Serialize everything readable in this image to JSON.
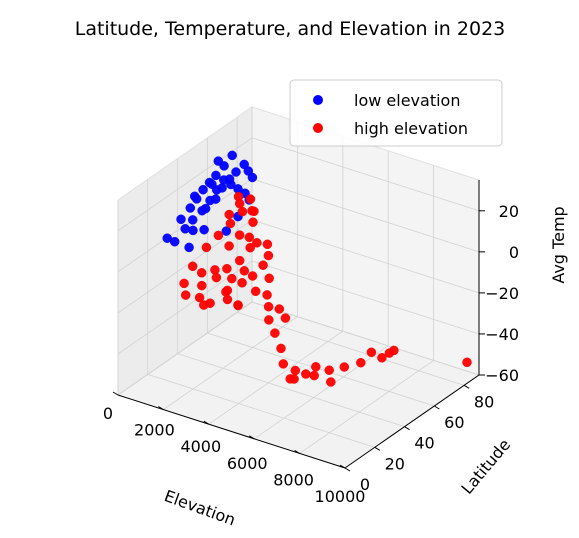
{
  "chart_data": {
    "type": "scatter",
    "projection": "3d",
    "title": "Latitude, Temperature, and Elevation in 2023",
    "xlabel": "Elevation",
    "ylabel": "Latitude",
    "zlabel": "Avg Temp",
    "x_ticks": [
      "0",
      "2000",
      "4000",
      "6000",
      "8000",
      "10000"
    ],
    "y_ticks": [
      "0",
      "20",
      "40",
      "60",
      "80"
    ],
    "z_ticks": [
      "20",
      "0",
      "−20",
      "−40",
      "−60"
    ],
    "xlim": [
      0,
      10000
    ],
    "ylim": [
      0,
      90
    ],
    "zlim": [
      -60,
      35
    ],
    "grid": true,
    "legend_position": "top-right",
    "series": [
      {
        "name": "low elevation",
        "color": "#0000ff",
        "points": [
          {
            "elevation": 150,
            "latitude": 40,
            "temp": 6
          },
          {
            "elevation": 300,
            "latitude": 44,
            "temp": 10
          },
          {
            "elevation": 450,
            "latitude": 46,
            "temp": 14
          },
          {
            "elevation": 600,
            "latitude": 48,
            "temp": 18
          },
          {
            "elevation": 750,
            "latitude": 50,
            "temp": 21
          },
          {
            "elevation": 900,
            "latitude": 52,
            "temp": 24
          },
          {
            "elevation": 250,
            "latitude": 55,
            "temp": 4
          },
          {
            "elevation": 500,
            "latitude": 58,
            "temp": 8
          },
          {
            "elevation": 650,
            "latitude": 60,
            "temp": 13
          },
          {
            "elevation": 850,
            "latitude": 62,
            "temp": 17
          },
          {
            "elevation": 1000,
            "latitude": 64,
            "temp": 20
          },
          {
            "elevation": 1100,
            "latitude": 68,
            "temp": 22
          },
          {
            "elevation": 1150,
            "latitude": 70,
            "temp": 18
          },
          {
            "elevation": 1200,
            "latitude": 72,
            "temp": 14
          },
          {
            "elevation": 200,
            "latitude": 30,
            "temp": 2
          },
          {
            "elevation": 400,
            "latitude": 32,
            "temp": 0
          },
          {
            "elevation": 600,
            "latitude": 36,
            "temp": 5
          },
          {
            "elevation": 800,
            "latitude": 38,
            "temp": 9
          },
          {
            "elevation": 950,
            "latitude": 42,
            "temp": 12
          },
          {
            "elevation": 1100,
            "latitude": 45,
            "temp": 16
          },
          {
            "elevation": 1200,
            "latitude": 48,
            "temp": 20
          },
          {
            "elevation": 1250,
            "latitude": 52,
            "temp": 23
          },
          {
            "elevation": 1300,
            "latitude": 56,
            "temp": 19
          },
          {
            "elevation": 1350,
            "latitude": 60,
            "temp": 15
          },
          {
            "elevation": 1400,
            "latitude": 64,
            "temp": 11
          },
          {
            "elevation": 1450,
            "latitude": 66,
            "temp": 7
          },
          {
            "elevation": 1480,
            "latitude": 58,
            "temp": 3
          },
          {
            "elevation": 1490,
            "latitude": 50,
            "temp": 0
          },
          {
            "elevation": 100,
            "latitude": 50,
            "temp": 12
          },
          {
            "elevation": 350,
            "latitude": 62,
            "temp": 24
          },
          {
            "elevation": 700,
            "latitude": 66,
            "temp": 26
          },
          {
            "elevation": 1000,
            "latitude": 56,
            "temp": 27
          },
          {
            "elevation": 1250,
            "latitude": 44,
            "temp": 25
          },
          {
            "elevation": 550,
            "latitude": 42,
            "temp": 1
          },
          {
            "elevation": 900,
            "latitude": 34,
            "temp": -2
          },
          {
            "elevation": 1300,
            "latitude": 38,
            "temp": 6
          }
        ]
      },
      {
        "name": "high elevation",
        "color": "#ff0000",
        "points": [
          {
            "elevation": 1600,
            "latitude": 35,
            "temp": 0
          },
          {
            "elevation": 1800,
            "latitude": 40,
            "temp": 4
          },
          {
            "elevation": 2000,
            "latitude": 45,
            "temp": 8
          },
          {
            "elevation": 2200,
            "latitude": 50,
            "temp": 12
          },
          {
            "elevation": 2400,
            "latitude": 38,
            "temp": 2
          },
          {
            "elevation": 2600,
            "latitude": 42,
            "temp": 6
          },
          {
            "elevation": 2800,
            "latitude": 48,
            "temp": 10
          },
          {
            "elevation": 3000,
            "latitude": 36,
            "temp": -2
          },
          {
            "elevation": 3200,
            "latitude": 40,
            "temp": 3
          },
          {
            "elevation": 3400,
            "latitude": 33,
            "temp": -4
          },
          {
            "elevation": 1700,
            "latitude": 55,
            "temp": 15
          },
          {
            "elevation": 1900,
            "latitude": 60,
            "temp": 12
          },
          {
            "elevation": 2100,
            "latitude": 58,
            "temp": 8
          },
          {
            "elevation": 2300,
            "latitude": 30,
            "temp": -6
          },
          {
            "elevation": 2500,
            "latitude": 28,
            "temp": -8
          },
          {
            "elevation": 2700,
            "latitude": 32,
            "temp": -5
          },
          {
            "elevation": 2900,
            "latitude": 44,
            "temp": 5
          },
          {
            "elevation": 3100,
            "latitude": 46,
            "temp": 2
          },
          {
            "elevation": 3300,
            "latitude": 50,
            "temp": 0
          },
          {
            "elevation": 3500,
            "latitude": 30,
            "temp": -8
          },
          {
            "elevation": 3700,
            "latitude": 34,
            "temp": -6
          },
          {
            "elevation": 3900,
            "latitude": 38,
            "temp": -2
          },
          {
            "elevation": 4100,
            "latitude": 30,
            "temp": -10
          },
          {
            "elevation": 1650,
            "latitude": 25,
            "temp": -4
          },
          {
            "elevation": 1850,
            "latitude": 28,
            "temp": -8
          },
          {
            "elevation": 2050,
            "latitude": 25,
            "temp": -12
          },
          {
            "elevation": 1750,
            "latitude": 48,
            "temp": 10
          },
          {
            "elevation": 1950,
            "latitude": 52,
            "temp": 14
          },
          {
            "elevation": 2450,
            "latitude": 54,
            "temp": 11
          },
          {
            "elevation": 2650,
            "latitude": 36,
            "temp": -12
          },
          {
            "elevation": 2850,
            "latitude": 30,
            "temp": -14
          },
          {
            "elevation": 3050,
            "latitude": 26,
            "temp": -12
          },
          {
            "elevation": 3250,
            "latitude": 24,
            "temp": -14
          },
          {
            "elevation": 2150,
            "latitude": 22,
            "temp": -16
          },
          {
            "elevation": 2350,
            "latitude": 26,
            "temp": -20
          },
          {
            "elevation": 3450,
            "latitude": 28,
            "temp": -18
          },
          {
            "elevation": 3650,
            "latitude": 25,
            "temp": -16
          },
          {
            "elevation": 1600,
            "latitude": 20,
            "temp": -10
          },
          {
            "elevation": 1800,
            "latitude": 18,
            "temp": -14
          },
          {
            "elevation": 2600,
            "latitude": 18,
            "temp": -16
          },
          {
            "elevation": 4000,
            "latitude": 40,
            "temp": 2
          },
          {
            "elevation": 4300,
            "latitude": 36,
            "temp": -6
          },
          {
            "elevation": 4600,
            "latitude": 30,
            "temp": -10
          },
          {
            "elevation": 4800,
            "latitude": 28,
            "temp": -14
          },
          {
            "elevation": 5200,
            "latitude": 22,
            "temp": -16
          },
          {
            "elevation": 5600,
            "latitude": 20,
            "temp": -20
          },
          {
            "elevation": 6000,
            "latitude": 18,
            "temp": -25
          },
          {
            "elevation": 6300,
            "latitude": 15,
            "temp": -30
          },
          {
            "elevation": 6800,
            "latitude": 12,
            "temp": -34
          },
          {
            "elevation": 7100,
            "latitude": 10,
            "temp": -32
          },
          {
            "elevation": 6500,
            "latitude": 20,
            "temp": -35
          },
          {
            "elevation": 6700,
            "latitude": 24,
            "temp": -38
          },
          {
            "elevation": 7200,
            "latitude": 22,
            "temp": -36
          },
          {
            "elevation": 7400,
            "latitude": 20,
            "temp": -30
          },
          {
            "elevation": 7600,
            "latitude": 26,
            "temp": -34
          },
          {
            "elevation": 7800,
            "latitude": 24,
            "temp": -38
          },
          {
            "elevation": 8000,
            "latitude": 30,
            "temp": -33
          },
          {
            "elevation": 8400,
            "latitude": 35,
            "temp": -32
          },
          {
            "elevation": 8800,
            "latitude": 36,
            "temp": -26
          },
          {
            "elevation": 9000,
            "latitude": 40,
            "temp": -30
          },
          {
            "elevation": 9200,
            "latitude": 42,
            "temp": -28
          },
          {
            "elevation": 9400,
            "latitude": 42,
            "temp": -26
          },
          {
            "elevation": 9800,
            "latitude": 85,
            "temp": -52
          },
          {
            "elevation": 5400,
            "latitude": 26,
            "temp": -12
          },
          {
            "elevation": 5800,
            "latitude": 24,
            "temp": -14
          }
        ]
      }
    ]
  }
}
